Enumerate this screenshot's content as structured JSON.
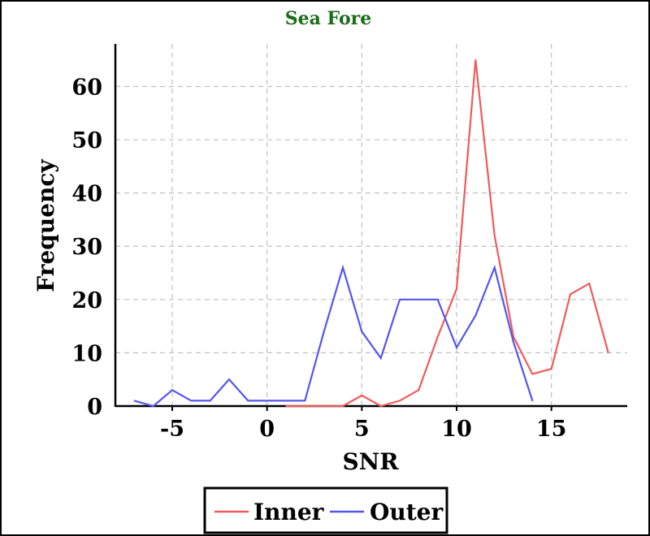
{
  "chart_data": {
    "type": "line",
    "title": "Sea Fore",
    "xlabel": "SNR",
    "ylabel": "Frequency",
    "xlim": [
      -8,
      19
    ],
    "ylim": [
      0,
      68
    ],
    "xticks": [
      -5,
      0,
      5,
      10,
      15
    ],
    "yticks": [
      0,
      10,
      20,
      30,
      40,
      50,
      60
    ],
    "grid": true,
    "legend_position": "bottom-center",
    "colors": {
      "title": "#1a6b1a",
      "grid": "#c0c0c0",
      "axis": "#000000"
    },
    "series": [
      {
        "name": "Inner",
        "color": "#f05a5a",
        "x": [
          1,
          2,
          3,
          4,
          5,
          6,
          7,
          8,
          9,
          10,
          11,
          12,
          13,
          14,
          15,
          16,
          17,
          18
        ],
        "y": [
          0,
          0,
          0,
          0,
          2,
          0,
          1,
          3,
          13,
          22,
          65,
          32,
          13,
          6,
          7,
          21,
          23,
          10
        ]
      },
      {
        "name": "Outer",
        "color": "#5555ee",
        "x": [
          -7,
          -6,
          -5,
          -4,
          -3,
          -2,
          -1,
          0,
          1,
          2,
          3,
          4,
          5,
          6,
          7,
          8,
          9,
          10,
          11,
          12,
          13,
          14
        ],
        "y": [
          1,
          0,
          3,
          1,
          1,
          5,
          1,
          1,
          1,
          1,
          14,
          26,
          14,
          9,
          20,
          20,
          20,
          11,
          17,
          26,
          12,
          1
        ]
      }
    ]
  }
}
